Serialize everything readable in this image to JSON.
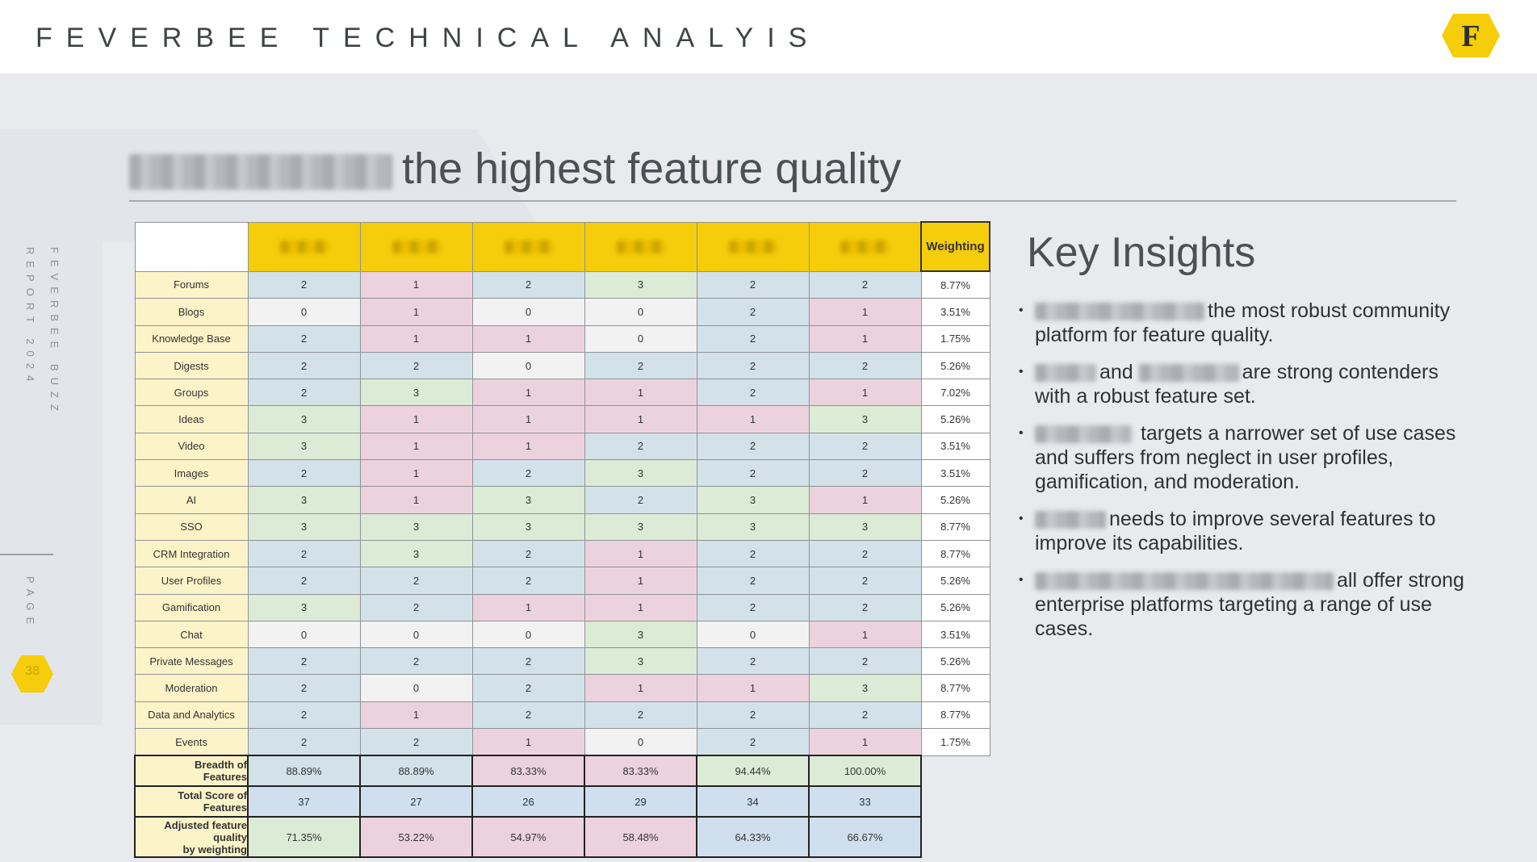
{
  "header": {
    "title": "FEVERBEE TECHNICAL ANALYIS",
    "logo_letter": "F"
  },
  "sidebar": {
    "report_line1": "FEVERBEE BUZZ",
    "report_line2": "REPORT 2024",
    "page_label": "PAGE",
    "page_number": "38"
  },
  "slide": {
    "title_suffix": "the highest feature quality"
  },
  "table": {
    "weighting_header": "Weighting",
    "rows": [
      {
        "label": "Forums",
        "values": [
          "2",
          "1",
          "2",
          "3",
          "2",
          "2"
        ],
        "colors": [
          "b",
          "p",
          "b",
          "g",
          "b",
          "b"
        ],
        "weight": "8.77%"
      },
      {
        "label": "Blogs",
        "values": [
          "0",
          "1",
          "0",
          "0",
          "2",
          "1"
        ],
        "colors": [
          "w",
          "p",
          "w",
          "w",
          "b",
          "p"
        ],
        "weight": "3.51%"
      },
      {
        "label": "Knowledge Base",
        "values": [
          "2",
          "1",
          "1",
          "0",
          "2",
          "1"
        ],
        "colors": [
          "b",
          "p",
          "p",
          "w",
          "b",
          "p"
        ],
        "weight": "1.75%"
      },
      {
        "label": "Digests",
        "values": [
          "2",
          "2",
          "0",
          "2",
          "2",
          "2"
        ],
        "colors": [
          "b",
          "b",
          "w",
          "b",
          "b",
          "b"
        ],
        "weight": "5.26%"
      },
      {
        "label": "Groups",
        "values": [
          "2",
          "3",
          "1",
          "1",
          "2",
          "1"
        ],
        "colors": [
          "b",
          "g",
          "p",
          "p",
          "b",
          "p"
        ],
        "weight": "7.02%"
      },
      {
        "label": "Ideas",
        "values": [
          "3",
          "1",
          "1",
          "1",
          "1",
          "3"
        ],
        "colors": [
          "g",
          "p",
          "p",
          "p",
          "p",
          "g"
        ],
        "weight": "5.26%"
      },
      {
        "label": "Video",
        "values": [
          "3",
          "1",
          "1",
          "2",
          "2",
          "2"
        ],
        "colors": [
          "g",
          "p",
          "p",
          "b",
          "b",
          "b"
        ],
        "weight": "3.51%"
      },
      {
        "label": "Images",
        "values": [
          "2",
          "1",
          "2",
          "3",
          "2",
          "2"
        ],
        "colors": [
          "b",
          "p",
          "b",
          "g",
          "b",
          "b"
        ],
        "weight": "3.51%"
      },
      {
        "label": "AI",
        "values": [
          "3",
          "1",
          "3",
          "2",
          "3",
          "1"
        ],
        "colors": [
          "g",
          "p",
          "g",
          "b",
          "g",
          "p"
        ],
        "weight": "5.26%"
      },
      {
        "label": "SSO",
        "values": [
          "3",
          "3",
          "3",
          "3",
          "3",
          "3"
        ],
        "colors": [
          "g",
          "g",
          "g",
          "g",
          "g",
          "g"
        ],
        "weight": "8.77%"
      },
      {
        "label": "CRM Integration",
        "values": [
          "2",
          "3",
          "2",
          "1",
          "2",
          "2"
        ],
        "colors": [
          "b",
          "g",
          "b",
          "p",
          "b",
          "b"
        ],
        "weight": "8.77%"
      },
      {
        "label": "User Profiles",
        "values": [
          "2",
          "2",
          "2",
          "1",
          "2",
          "2"
        ],
        "colors": [
          "b",
          "b",
          "b",
          "p",
          "b",
          "b"
        ],
        "weight": "5.26%"
      },
      {
        "label": "Gamification",
        "values": [
          "3",
          "2",
          "1",
          "1",
          "2",
          "2"
        ],
        "colors": [
          "g",
          "b",
          "p",
          "p",
          "b",
          "b"
        ],
        "weight": "5.26%"
      },
      {
        "label": "Chat",
        "values": [
          "0",
          "0",
          "0",
          "3",
          "0",
          "1"
        ],
        "colors": [
          "w",
          "w",
          "w",
          "g",
          "w",
          "p"
        ],
        "weight": "3.51%"
      },
      {
        "label": "Private Messages",
        "values": [
          "2",
          "2",
          "2",
          "3",
          "2",
          "2"
        ],
        "colors": [
          "b",
          "b",
          "b",
          "g",
          "b",
          "b"
        ],
        "weight": "5.26%"
      },
      {
        "label": "Moderation",
        "values": [
          "2",
          "0",
          "2",
          "1",
          "1",
          "3"
        ],
        "colors": [
          "b",
          "w",
          "b",
          "p",
          "p",
          "g"
        ],
        "weight": "8.77%"
      },
      {
        "label": "Data and Analytics",
        "values": [
          "2",
          "1",
          "2",
          "2",
          "2",
          "2"
        ],
        "colors": [
          "b",
          "p",
          "b",
          "b",
          "b",
          "b"
        ],
        "weight": "8.77%"
      },
      {
        "label": "Events",
        "values": [
          "2",
          "2",
          "1",
          "0",
          "2",
          "1"
        ],
        "colors": [
          "b",
          "b",
          "p",
          "w",
          "b",
          "p"
        ],
        "weight": "1.75%"
      }
    ],
    "summary": [
      {
        "label_line1": "Breadth of",
        "label_line2": "Features",
        "values": [
          "88.89%",
          "88.89%",
          "83.33%",
          "83.33%",
          "94.44%",
          "100.00%"
        ],
        "colors": [
          "b",
          "b",
          "p",
          "p",
          "g",
          "g"
        ]
      },
      {
        "label_line1": "Total Score of",
        "label_line2": "Features",
        "values": [
          "37",
          "27",
          "26",
          "29",
          "34",
          "33"
        ],
        "colors": [
          "sb",
          "sb",
          "sb",
          "sb",
          "sb",
          "sb"
        ]
      },
      {
        "label_line1": "Adjusted feature",
        "label_line2": "quality",
        "label_line3": "by weighting",
        "values": [
          "71.35%",
          "53.22%",
          "54.97%",
          "58.48%",
          "64.33%",
          "66.67%"
        ],
        "colors": [
          "g",
          "p",
          "p",
          "p",
          "sb",
          "sb"
        ]
      }
    ],
    "colors": {
      "g": "#dcebd5",
      "p": "#ecd2dd",
      "b": "#d3e1e9",
      "w": "#f2f2f2",
      "sb": "#cfdfee",
      "header_yellow": "#f5cd0a"
    }
  },
  "insights": {
    "title": "Key Insights",
    "items": [
      {
        "text": "the most robust community platform for feature quality."
      },
      {
        "text_a": "and",
        "text_b": "are strong contenders with a robust feature set."
      },
      {
        "text": "targets a narrower set of use cases and suffers from neglect in user profiles, gamification, and moderation."
      },
      {
        "text": "needs to improve several features to improve its capabilities."
      },
      {
        "text": "all offer strong enterprise platforms targeting a range of use cases."
      }
    ]
  }
}
